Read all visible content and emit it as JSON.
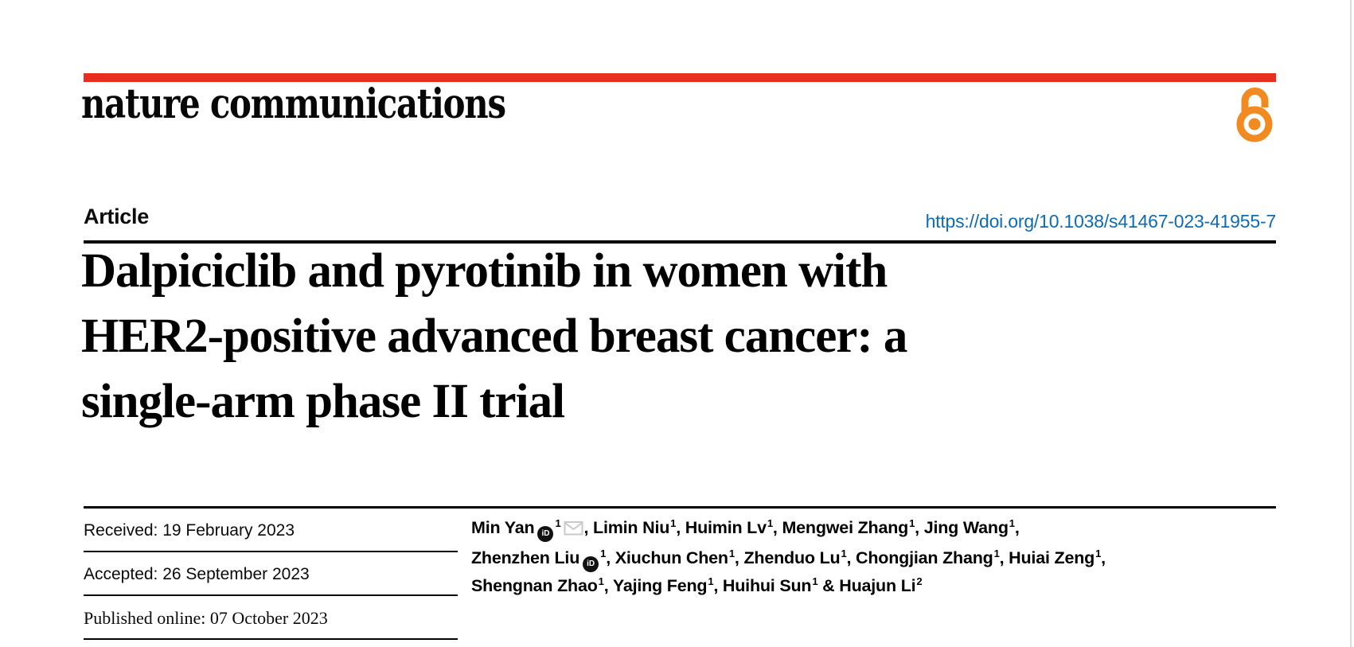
{
  "colors": {
    "brand_red": "#e62e21",
    "open_access_orange": "#f18a21",
    "link_blue": "#0d6cb4",
    "rule_black": "#000000",
    "envelope_gray": "#c9c9c9",
    "page_edge_gray": "#dcdcdc",
    "orcid_badge": "#111111"
  },
  "masthead": {
    "journal_name": "nature communications",
    "open_access_icon": "open-access-padlock-icon"
  },
  "article_header": {
    "kicker": "Article",
    "doi_link": "https://doi.org/10.1038/s41467-023-41955-7",
    "title_lines": [
      "Dalpiciclib and pyrotinib in women with",
      "HER2-positive advanced breast cancer: a",
      "single-arm phase II trial"
    ]
  },
  "history": {
    "received": "Received: 19 February 2023",
    "accepted": "Accepted: 26 September 2023",
    "published": "Published online: 07 October 2023"
  },
  "authors": {
    "orcid_icon_text": "iD",
    "lines": [
      [
        {
          "name": "Min Yan",
          "orcid": true,
          "sup": "1",
          "email": true,
          "suffix": ", "
        },
        {
          "name": "Limin Niu",
          "sup": "1",
          "suffix": ", "
        },
        {
          "name": "Huimin Lv",
          "sup": "1",
          "suffix": ", "
        },
        {
          "name": "Mengwei Zhang",
          "sup": "1",
          "suffix": ", "
        },
        {
          "name": "Jing Wang",
          "sup": "1",
          "suffix": ","
        }
      ],
      [
        {
          "name": "Zhenzhen Liu",
          "orcid": true,
          "sup": "1",
          "suffix": ", "
        },
        {
          "name": "Xiuchun Chen",
          "sup": "1",
          "suffix": ", "
        },
        {
          "name": "Zhenduo Lu",
          "sup": "1",
          "suffix": ", "
        },
        {
          "name": "Chongjian Zhang",
          "sup": "1",
          "suffix": ", "
        },
        {
          "name": "Huiai Zeng",
          "sup": "1",
          "suffix": ","
        }
      ],
      [
        {
          "name": "Shengnan Zhao",
          "sup": "1",
          "suffix": ", "
        },
        {
          "name": "Yajing Feng",
          "sup": "1",
          "suffix": ", "
        },
        {
          "name": "Huihui Sun",
          "sup": "1",
          "suffix": " & "
        },
        {
          "name": "Huajun Li",
          "sup": "2",
          "suffix": ""
        }
      ]
    ]
  }
}
